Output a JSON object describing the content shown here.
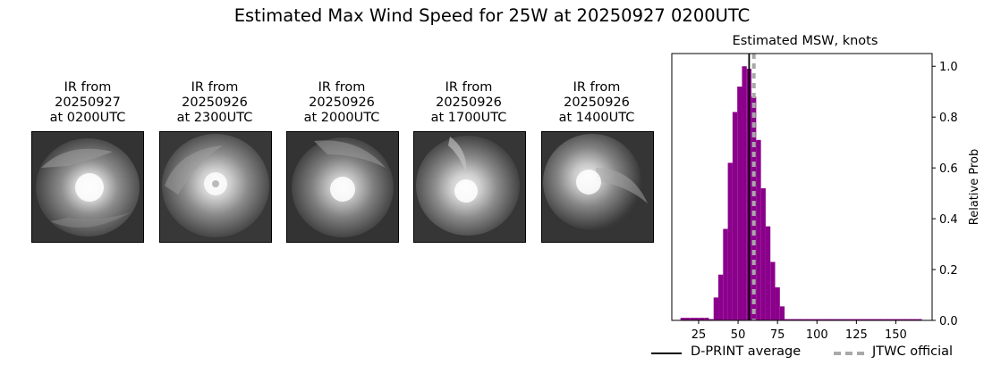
{
  "figure": {
    "title": "Estimated Max Wind Speed for 25W at 20250927 0200UTC"
  },
  "ir_panels": [
    {
      "line1": "IR from",
      "date": "20250927",
      "time": "at 0200UTC"
    },
    {
      "line1": "IR from",
      "date": "20250926",
      "time": "at 2300UTC"
    },
    {
      "line1": "IR from",
      "date": "20250926",
      "time": "at 2000UTC"
    },
    {
      "line1": "IR from",
      "date": "20250926",
      "time": "at 1700UTC"
    },
    {
      "line1": "IR from",
      "date": "20250926",
      "time": "at 1400UTC"
    }
  ],
  "legend": {
    "dprint_label": "D-PRINT average",
    "jtwc_label": "JTWC official"
  },
  "chart_data": {
    "type": "bar",
    "title": "Estimated MSW, knots",
    "xlabel": "",
    "ylabel": "Relative Prob",
    "y_axis_side": "right",
    "xlim": [
      8,
      173
    ],
    "ylim": [
      0,
      1.05
    ],
    "xticks": [
      25,
      50,
      75,
      100,
      125,
      150
    ],
    "yticks": [
      0.0,
      0.2,
      0.4,
      0.6,
      0.8,
      1.0
    ],
    "ytick_labels": [
      "0.0",
      "0.2",
      "0.4",
      "0.6",
      "0.8",
      "1.0"
    ],
    "bin_width": 3,
    "bins": [
      {
        "x": 15,
        "y": 0.01
      },
      {
        "x": 18,
        "y": 0.01
      },
      {
        "x": 21,
        "y": 0.01
      },
      {
        "x": 24,
        "y": 0.01
      },
      {
        "x": 27,
        "y": 0.01
      },
      {
        "x": 30,
        "y": 0.01
      },
      {
        "x": 33,
        "y": 0.005
      },
      {
        "x": 36,
        "y": 0.09
      },
      {
        "x": 39,
        "y": 0.18
      },
      {
        "x": 42,
        "y": 0.36
      },
      {
        "x": 45,
        "y": 0.62
      },
      {
        "x": 48,
        "y": 0.82
      },
      {
        "x": 51,
        "y": 0.92
      },
      {
        "x": 54,
        "y": 1.0
      },
      {
        "x": 57,
        "y": 0.99
      },
      {
        "x": 60,
        "y": 0.88
      },
      {
        "x": 63,
        "y": 0.71
      },
      {
        "x": 66,
        "y": 0.52
      },
      {
        "x": 69,
        "y": 0.37
      },
      {
        "x": 72,
        "y": 0.23
      },
      {
        "x": 75,
        "y": 0.13
      },
      {
        "x": 78,
        "y": 0.055
      },
      {
        "x": 81,
        "y": 0.005
      },
      {
        "x": 84,
        "y": 0.005
      },
      {
        "x": 87,
        "y": 0.005
      },
      {
        "x": 90,
        "y": 0.005
      },
      {
        "x": 93,
        "y": 0.005
      },
      {
        "x": 96,
        "y": 0.005
      },
      {
        "x": 99,
        "y": 0.005
      },
      {
        "x": 102,
        "y": 0.005
      },
      {
        "x": 105,
        "y": 0.005
      },
      {
        "x": 108,
        "y": 0.005
      },
      {
        "x": 111,
        "y": 0.005
      },
      {
        "x": 114,
        "y": 0.005
      },
      {
        "x": 117,
        "y": 0.005
      },
      {
        "x": 120,
        "y": 0.005
      },
      {
        "x": 123,
        "y": 0.005
      },
      {
        "x": 126,
        "y": 0.005
      },
      {
        "x": 129,
        "y": 0.005
      },
      {
        "x": 132,
        "y": 0.005
      },
      {
        "x": 135,
        "y": 0.005
      },
      {
        "x": 138,
        "y": 0.005
      },
      {
        "x": 141,
        "y": 0.005
      },
      {
        "x": 144,
        "y": 0.005
      },
      {
        "x": 147,
        "y": 0.005
      },
      {
        "x": 150,
        "y": 0.005
      },
      {
        "x": 153,
        "y": 0.005
      },
      {
        "x": 156,
        "y": 0.005
      },
      {
        "x": 159,
        "y": 0.005
      },
      {
        "x": 162,
        "y": 0.005
      },
      {
        "x": 165,
        "y": 0.005
      }
    ],
    "bar_color": "#8b008b",
    "dprint_average": 57,
    "jtwc_official": 60,
    "dprint_color": "#000000",
    "jtwc_color": "#a9a9a9",
    "series": [
      {
        "name": "D-PRINT average",
        "value": 57
      },
      {
        "name": "JTWC official",
        "value": 60
      }
    ]
  }
}
